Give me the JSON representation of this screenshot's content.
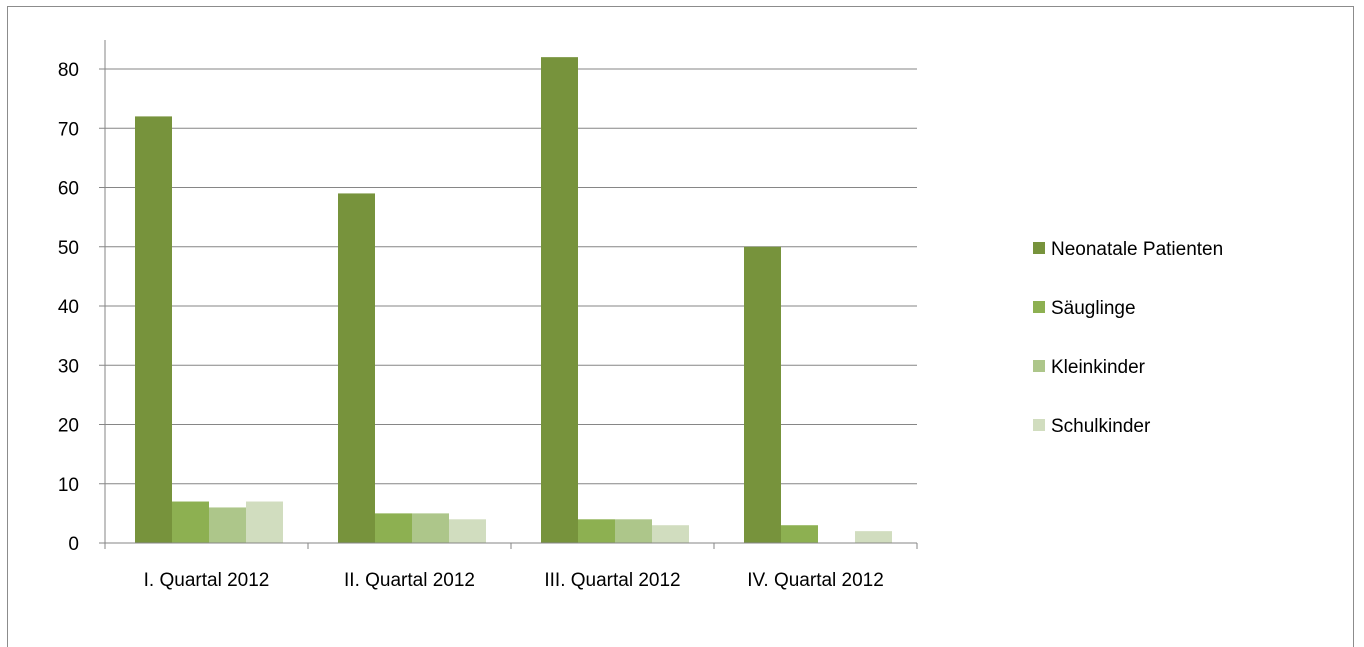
{
  "chart_data": {
    "type": "bar",
    "title": "",
    "xlabel": "",
    "ylabel": "",
    "categories": [
      "I. Quartal 2012",
      "II. Quartal 2012",
      "III. Quartal 2012",
      "IV. Quartal 2012"
    ],
    "series": [
      {
        "name": "Neonatale Patienten",
        "values": [
          72,
          59,
          82,
          50
        ],
        "color": "#77933c"
      },
      {
        "name": "Säuglinge",
        "values": [
          7,
          5,
          4,
          3
        ],
        "color": "#8db051"
      },
      {
        "name": "Kleinkinder",
        "values": [
          6,
          5,
          4,
          0
        ],
        "color": "#adc68a"
      },
      {
        "name": "Schulkinder",
        "values": [
          7,
          4,
          3,
          2
        ],
        "color": "#d1ddbf"
      }
    ],
    "ylim": [
      0,
      80
    ],
    "yticks": [
      0,
      10,
      20,
      30,
      40,
      50,
      60,
      70,
      80
    ],
    "grid": true,
    "legend_position": "right"
  }
}
